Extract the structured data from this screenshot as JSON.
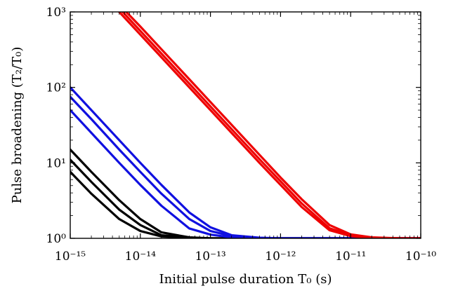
{
  "chart_data": {
    "type": "line",
    "xlabel": "Initial pulse duration T₀ (s)",
    "ylabel": "Pulse broadening (T₂/T₀)",
    "x_scale": "log",
    "y_scale": "log",
    "xlim": [
      1e-15,
      1e-10
    ],
    "ylim": [
      1,
      1000
    ],
    "grid": false,
    "x_ticks": [
      {
        "value": 1e-15,
        "label": "10⁻¹⁵"
      },
      {
        "value": 1e-14,
        "label": "10⁻¹⁴"
      },
      {
        "value": 1e-13,
        "label": "10⁻¹³"
      },
      {
        "value": 1e-12,
        "label": "10⁻¹²"
      },
      {
        "value": 1e-11,
        "label": "10⁻¹¹"
      },
      {
        "value": 1e-10,
        "label": "10⁻¹⁰"
      }
    ],
    "y_ticks": [
      {
        "value": 1,
        "label": "10⁰"
      },
      {
        "value": 10,
        "label": "10¹"
      },
      {
        "value": 100,
        "label": "10²"
      },
      {
        "value": 1000,
        "label": "10³"
      }
    ],
    "series": [
      {
        "color": "#000000",
        "x": [
          1e-15,
          2e-15,
          5e-15,
          1e-14,
          2e-14,
          5e-14,
          1e-13,
          2e-13,
          1e-12,
          1e-10
        ],
        "y": [
          15,
          7.6,
          3.2,
          1.8,
          1.2,
          1.03,
          1.0,
          1.0,
          1.0,
          1.0
        ]
      },
      {
        "color": "#000000",
        "x": [
          1e-15,
          2e-15,
          5e-15,
          1e-14,
          2e-14,
          5e-14,
          1e-13,
          2e-13,
          1e-12,
          1e-10
        ],
        "y": [
          11,
          5.6,
          2.4,
          1.5,
          1.1,
          1.02,
          1.0,
          1.0,
          1.0,
          1.0
        ]
      },
      {
        "color": "#000000",
        "x": [
          1e-15,
          2e-15,
          5e-15,
          1e-14,
          2e-14,
          5e-14,
          1e-13,
          2e-13,
          1e-12,
          1e-10
        ],
        "y": [
          7.6,
          3.9,
          1.8,
          1.25,
          1.06,
          1.01,
          1.0,
          1.0,
          1.0,
          1.0
        ]
      },
      {
        "color": "#1010e0",
        "x": [
          1e-15,
          2e-15,
          5e-15,
          1e-14,
          2e-14,
          5e-14,
          1e-13,
          2e-13,
          5e-13,
          1e-12,
          1e-10
        ],
        "y": [
          100,
          50,
          20,
          10,
          5.1,
          2.2,
          1.4,
          1.1,
          1.02,
          1.0,
          1.0
        ]
      },
      {
        "color": "#1010e0",
        "x": [
          1e-15,
          2e-15,
          5e-15,
          1e-14,
          2e-14,
          5e-14,
          1e-13,
          2e-13,
          5e-13,
          1e-12,
          1e-10
        ],
        "y": [
          75,
          38,
          15,
          7.6,
          3.9,
          1.8,
          1.25,
          1.07,
          1.01,
          1.0,
          1.0
        ]
      },
      {
        "color": "#1010e0",
        "x": [
          1e-15,
          2e-15,
          5e-15,
          1e-14,
          2e-14,
          5e-14,
          1e-13,
          2e-13,
          5e-13,
          1e-12,
          1e-10
        ],
        "y": [
          50,
          25,
          10,
          5.1,
          2.7,
          1.35,
          1.12,
          1.03,
          1.0,
          1.0,
          1.0
        ]
      },
      {
        "color": "#ee0000",
        "x": [
          6.3e-15,
          1e-14,
          2e-14,
          5e-14,
          1e-13,
          2e-13,
          5e-13,
          1e-12,
          2e-12,
          5e-12,
          1e-11,
          2e-11,
          5e-11,
          1e-10
        ],
        "y": [
          1000,
          640,
          320,
          128,
          64,
          32,
          12.8,
          6.4,
          3.3,
          1.5,
          1.13,
          1.03,
          1.0,
          1.0
        ]
      },
      {
        "color": "#ee0000",
        "x": [
          5.6e-15,
          1e-14,
          2e-14,
          5e-14,
          1e-13,
          2e-13,
          5e-13,
          1e-12,
          2e-12,
          5e-12,
          1e-11,
          2e-11,
          5e-11,
          1e-10
        ],
        "y": [
          1000,
          560,
          280,
          112,
          56,
          28,
          11.2,
          5.7,
          2.9,
          1.36,
          1.1,
          1.02,
          1.0,
          1.0
        ]
      },
      {
        "color": "#ee0000",
        "x": [
          5e-15,
          1e-14,
          2e-14,
          5e-14,
          1e-13,
          2e-13,
          5e-13,
          1e-12,
          2e-12,
          5e-12,
          1e-11,
          2e-11,
          5e-11,
          1e-10
        ],
        "y": [
          1000,
          500,
          250,
          100,
          50,
          25,
          10,
          5.1,
          2.6,
          1.28,
          1.07,
          1.01,
          1.0,
          1.0
        ]
      }
    ]
  }
}
